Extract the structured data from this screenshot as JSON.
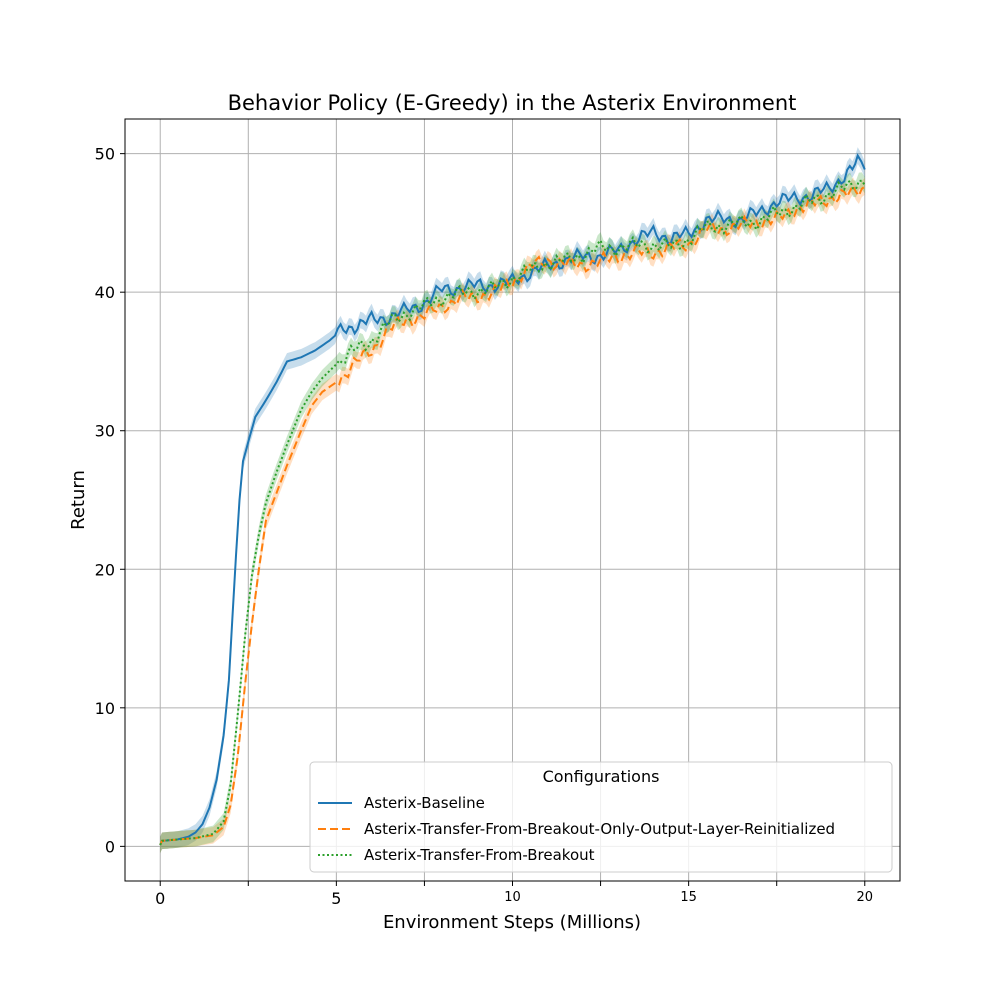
{
  "chart_data": {
    "type": "line",
    "title": "Behavior Policy (E-Greedy) in the Asterix Environment",
    "xlabel": "Environment Steps (Millions)",
    "ylabel": "Return",
    "xlim": [
      -1,
      21
    ],
    "ylim": [
      -2.5,
      52.5
    ],
    "xticks": [
      0,
      2.5,
      5,
      7.5,
      10,
      12.5,
      15,
      17.5,
      20
    ],
    "xtick_labels": [
      "0",
      "",
      "5",
      "",
      "10",
      "",
      "15",
      "",
      "20"
    ],
    "yticks": [
      0,
      10,
      20,
      30,
      40,
      50
    ],
    "ytick_labels": [
      "0",
      "10",
      "20",
      "30",
      "40",
      "50"
    ],
    "grid": true,
    "legend": {
      "title": "Configurations",
      "position": "lower-right"
    },
    "series": [
      {
        "name": "Asterix-Baseline",
        "color": "#1f77b4",
        "dash": "solid",
        "band": 0.6,
        "points": [
          [
            0,
            0.1
          ],
          [
            0.05,
            0.4
          ],
          [
            0.5,
            0.5
          ],
          [
            0.8,
            0.7
          ],
          [
            1.0,
            1.0
          ],
          [
            1.2,
            1.6
          ],
          [
            1.4,
            2.8
          ],
          [
            1.6,
            4.8
          ],
          [
            1.8,
            8.0
          ],
          [
            1.95,
            12.0
          ],
          [
            2.05,
            16.5
          ],
          [
            2.15,
            21.0
          ],
          [
            2.25,
            25.0
          ],
          [
            2.35,
            27.8
          ],
          [
            2.5,
            29.2
          ],
          [
            2.7,
            31.0
          ],
          [
            3.0,
            32.2
          ],
          [
            3.3,
            33.5
          ],
          [
            3.6,
            35.0
          ],
          [
            4.0,
            35.3
          ],
          [
            4.4,
            35.8
          ],
          [
            4.8,
            36.5
          ],
          [
            5.2,
            37.4
          ],
          [
            5.6,
            37.6
          ],
          [
            6.0,
            38.0
          ],
          [
            6.5,
            38.2
          ],
          [
            7.0,
            38.7
          ],
          [
            7.5,
            39.2
          ],
          [
            8.0,
            40.2
          ],
          [
            8.5,
            40.3
          ],
          [
            9.0,
            40.5
          ],
          [
            9.5,
            40.5
          ],
          [
            10.0,
            40.8
          ],
          [
            10.5,
            41.4
          ],
          [
            11.0,
            41.9
          ],
          [
            11.5,
            42.3
          ],
          [
            12.0,
            42.6
          ],
          [
            12.5,
            42.6
          ],
          [
            13.0,
            43.0
          ],
          [
            13.5,
            43.8
          ],
          [
            14.0,
            44.3
          ],
          [
            14.5,
            43.9
          ],
          [
            15.0,
            44.2
          ],
          [
            15.5,
            45.2
          ],
          [
            16.0,
            45.3
          ],
          [
            16.5,
            45.2
          ],
          [
            17.0,
            45.8
          ],
          [
            17.5,
            46.5
          ],
          [
            18.0,
            46.8
          ],
          [
            18.5,
            47.0
          ],
          [
            19.0,
            47.5
          ],
          [
            19.5,
            48.6
          ],
          [
            19.8,
            49.3
          ],
          [
            20.0,
            49.2
          ]
        ]
      },
      {
        "name": "Asterix-Transfer-From-Breakout-Only-Output-Layer-Reinitialized",
        "color": "#ff7f0e",
        "dash": "dashed",
        "band": 0.6,
        "points": [
          [
            0,
            0.1
          ],
          [
            0.05,
            0.4
          ],
          [
            0.5,
            0.5
          ],
          [
            1.0,
            0.6
          ],
          [
            1.5,
            0.8
          ],
          [
            1.8,
            1.4
          ],
          [
            2.0,
            3.0
          ],
          [
            2.2,
            6.5
          ],
          [
            2.4,
            11.5
          ],
          [
            2.6,
            16.0
          ],
          [
            2.8,
            20.0
          ],
          [
            3.0,
            23.5
          ],
          [
            3.3,
            25.5
          ],
          [
            3.6,
            27.5
          ],
          [
            4.0,
            30.0
          ],
          [
            4.3,
            31.8
          ],
          [
            4.6,
            32.8
          ],
          [
            5.0,
            33.5
          ],
          [
            5.5,
            34.8
          ],
          [
            6.0,
            35.8
          ],
          [
            6.5,
            37.3
          ],
          [
            7.0,
            38.0
          ],
          [
            7.5,
            38.3
          ],
          [
            8.0,
            39.0
          ],
          [
            8.5,
            39.5
          ],
          [
            9.0,
            39.7
          ],
          [
            9.5,
            40.0
          ],
          [
            10.0,
            40.8
          ],
          [
            10.5,
            41.8
          ],
          [
            11.0,
            42.3
          ],
          [
            11.5,
            42.0
          ],
          [
            12.0,
            42.0
          ],
          [
            12.5,
            42.2
          ],
          [
            13.0,
            42.6
          ],
          [
            13.5,
            42.8
          ],
          [
            14.0,
            42.9
          ],
          [
            14.5,
            43.2
          ],
          [
            15.0,
            43.5
          ],
          [
            15.5,
            44.5
          ],
          [
            16.0,
            44.6
          ],
          [
            16.5,
            44.8
          ],
          [
            17.0,
            45.1
          ],
          [
            17.5,
            45.2
          ],
          [
            18.0,
            46.0
          ],
          [
            18.5,
            46.3
          ],
          [
            19.0,
            46.8
          ],
          [
            19.5,
            47.0
          ],
          [
            20.0,
            47.6
          ]
        ]
      },
      {
        "name": "Asterix-Transfer-From-Breakout",
        "color": "#2ca02c",
        "dash": "dotted",
        "band": 0.6,
        "points": [
          [
            0,
            0.1
          ],
          [
            0.05,
            0.4
          ],
          [
            0.5,
            0.5
          ],
          [
            1.0,
            0.6
          ],
          [
            1.5,
            0.9
          ],
          [
            1.8,
            1.8
          ],
          [
            2.0,
            4.5
          ],
          [
            2.2,
            9.5
          ],
          [
            2.4,
            15.0
          ],
          [
            2.6,
            19.5
          ],
          [
            2.8,
            22.5
          ],
          [
            3.0,
            24.8
          ],
          [
            3.3,
            27.0
          ],
          [
            3.6,
            29.0
          ],
          [
            4.0,
            31.5
          ],
          [
            4.3,
            32.8
          ],
          [
            4.6,
            33.8
          ],
          [
            5.0,
            34.8
          ],
          [
            5.5,
            35.8
          ],
          [
            6.0,
            36.5
          ],
          [
            6.5,
            37.8
          ],
          [
            7.0,
            38.5
          ],
          [
            7.5,
            39.0
          ],
          [
            8.0,
            39.6
          ],
          [
            8.5,
            39.9
          ],
          [
            9.0,
            40.1
          ],
          [
            9.5,
            40.3
          ],
          [
            10.0,
            41.0
          ],
          [
            10.5,
            41.6
          ],
          [
            11.0,
            42.1
          ],
          [
            11.5,
            42.3
          ],
          [
            12.0,
            42.7
          ],
          [
            12.5,
            43.2
          ],
          [
            13.0,
            43.2
          ],
          [
            13.5,
            43.4
          ],
          [
            14.0,
            43.4
          ],
          [
            14.5,
            43.3
          ],
          [
            15.0,
            43.8
          ],
          [
            15.5,
            44.7
          ],
          [
            16.0,
            44.8
          ],
          [
            16.5,
            45.0
          ],
          [
            17.0,
            45.1
          ],
          [
            17.5,
            45.7
          ],
          [
            18.0,
            46.1
          ],
          [
            18.5,
            46.6
          ],
          [
            19.0,
            47.1
          ],
          [
            19.5,
            47.6
          ],
          [
            20.0,
            48.2
          ]
        ]
      }
    ]
  }
}
